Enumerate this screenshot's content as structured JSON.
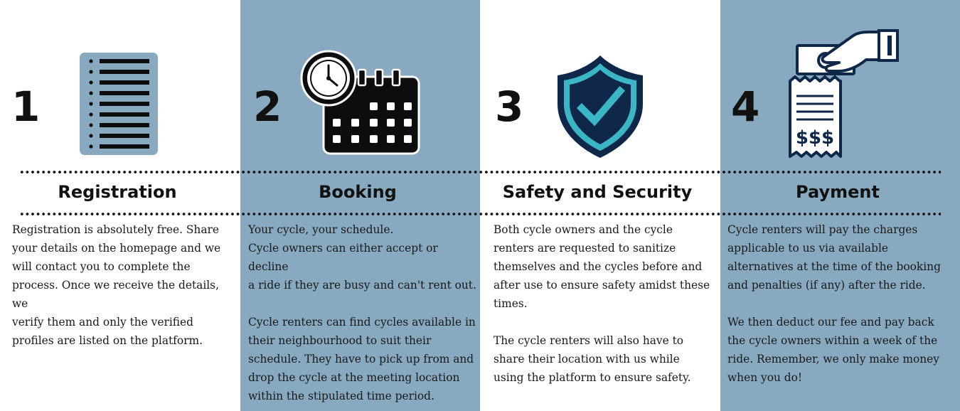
{
  "theme": {
    "panel_color": "#88a9c0",
    "text_color": "#1a1a1a",
    "heading_color": "#111111",
    "shield_accent": "#3cb6c6",
    "shield_dark": "#0f2748"
  },
  "steps": [
    {
      "number": "1",
      "title": "Registration",
      "icon": "document-list-icon",
      "text": "Registration is absolutely free. Share\nyour details on the homepage and we\nwill contact you to complete the\nprocess. Once we receive the details, we\nverify them and only the verified\nprofiles are listed on the platform."
    },
    {
      "number": "2",
      "title": "Booking",
      "icon": "calendar-clock-icon",
      "text": "Your cycle, your schedule.\nCycle owners can either accept or decline\na ride if they are busy and can't rent out.\n\nCycle renters can find cycles available in\ntheir neighbourhood to suit their\nschedule. They have to pick up from and\ndrop the cycle at the meeting location\nwithin the stipulated time period."
    },
    {
      "number": "3",
      "title": "Safety and Security",
      "icon": "shield-check-icon",
      "text": "Both cycle owners and the cycle\nrenters are requested to sanitize\nthemselves and the cycles before and\nafter use to ensure safety amidst these\ntimes.\n\nThe cycle renters will also have to\nshare their location with us while\nusing the platform to ensure safety."
    },
    {
      "number": "4",
      "title": "Payment",
      "icon": "payment-receipt-icon",
      "text": "Cycle renters will pay the charges\napplicable to us via available\nalternatives at the time of the booking\nand penalties (if any) after the ride.\n\nWe then deduct our fee and pay back\nthe cycle owners within a week of the\nride. Remember, we only make money\nwhen you do!",
      "receipt_symbols": "$$$"
    }
  ]
}
